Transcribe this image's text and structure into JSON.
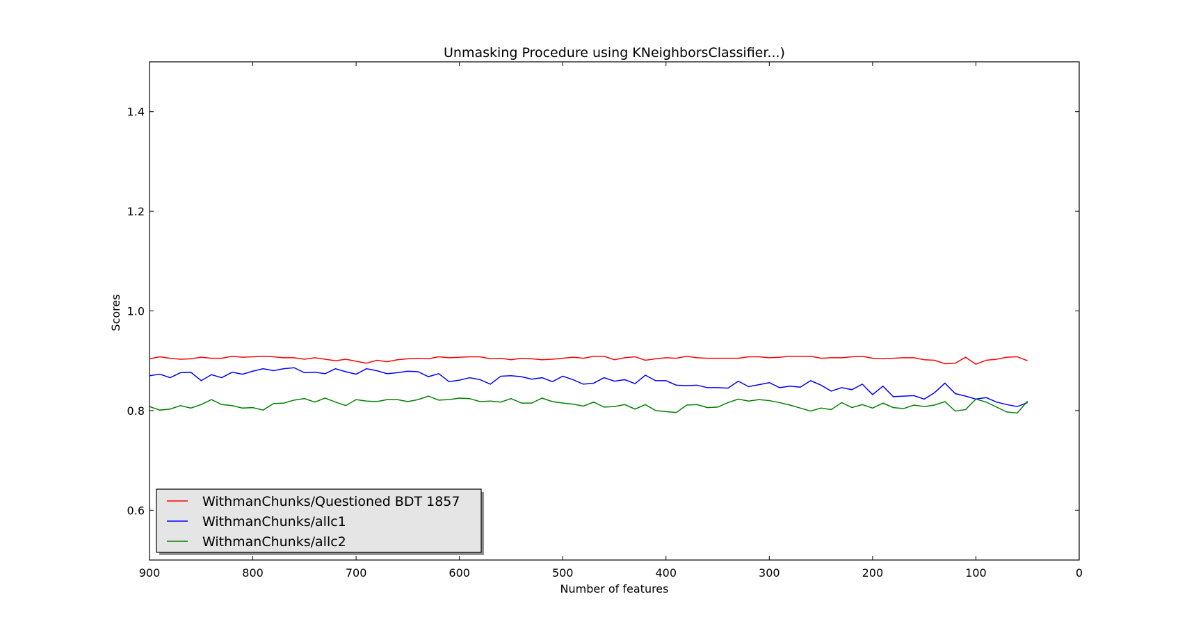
{
  "chart_data": {
    "type": "line",
    "title": "Unmasking Procedure using KNeighborsClassifier...)",
    "xlabel": "Number of features",
    "ylabel": "Scores",
    "xlim": [
      900,
      0
    ],
    "ylim": [
      0.5,
      1.5
    ],
    "x_ticks": [
      900,
      800,
      700,
      600,
      500,
      400,
      300,
      200,
      100,
      0
    ],
    "y_ticks": [
      0.6,
      0.8,
      1.0,
      1.2,
      1.4
    ],
    "y_tick_labels": [
      "0.6",
      "0.8",
      "1.0",
      "1.2",
      "1.4"
    ],
    "grid": false,
    "legend_position": "lower-left",
    "x": [
      900,
      890,
      880,
      870,
      860,
      850,
      840,
      830,
      820,
      810,
      800,
      790,
      780,
      770,
      760,
      750,
      740,
      730,
      720,
      710,
      700,
      690,
      680,
      670,
      660,
      650,
      640,
      630,
      620,
      610,
      600,
      590,
      580,
      570,
      560,
      550,
      540,
      530,
      520,
      510,
      500,
      490,
      480,
      470,
      460,
      450,
      440,
      430,
      420,
      410,
      400,
      390,
      380,
      370,
      360,
      350,
      340,
      330,
      320,
      310,
      300,
      290,
      280,
      270,
      260,
      250,
      240,
      230,
      220,
      210,
      200,
      190,
      180,
      170,
      160,
      150,
      140,
      130,
      120,
      110,
      100,
      90,
      80,
      70,
      60,
      50
    ],
    "series": [
      {
        "name": "WithmanChunks/Questioned BDT 1857",
        "color": "#ff0000",
        "values": [
          0.904,
          0.908,
          0.905,
          0.903,
          0.904,
          0.907,
          0.905,
          0.905,
          0.909,
          0.907,
          0.908,
          0.909,
          0.908,
          0.906,
          0.906,
          0.903,
          0.906,
          0.903,
          0.9,
          0.903,
          0.899,
          0.895,
          0.901,
          0.898,
          0.902,
          0.904,
          0.905,
          0.904,
          0.908,
          0.906,
          0.907,
          0.908,
          0.908,
          0.904,
          0.905,
          0.902,
          0.905,
          0.904,
          0.902,
          0.903,
          0.905,
          0.907,
          0.905,
          0.909,
          0.909,
          0.902,
          0.906,
          0.908,
          0.901,
          0.904,
          0.906,
          0.905,
          0.909,
          0.906,
          0.905,
          0.905,
          0.905,
          0.905,
          0.908,
          0.908,
          0.906,
          0.907,
          0.909,
          0.909,
          0.909,
          0.905,
          0.906,
          0.906,
          0.908,
          0.909,
          0.905,
          0.904,
          0.905,
          0.906,
          0.906,
          0.902,
          0.901,
          0.894,
          0.895,
          0.907,
          0.893,
          0.901,
          0.903,
          0.907,
          0.908,
          0.9
        ]
      },
      {
        "name": "WithmanChunks/allc1",
        "color": "#0000ff",
        "values": [
          0.87,
          0.873,
          0.866,
          0.876,
          0.877,
          0.86,
          0.872,
          0.866,
          0.877,
          0.873,
          0.879,
          0.884,
          0.88,
          0.884,
          0.886,
          0.876,
          0.877,
          0.874,
          0.884,
          0.878,
          0.873,
          0.884,
          0.88,
          0.874,
          0.876,
          0.879,
          0.878,
          0.868,
          0.874,
          0.858,
          0.861,
          0.866,
          0.862,
          0.853,
          0.869,
          0.87,
          0.868,
          0.863,
          0.866,
          0.858,
          0.869,
          0.862,
          0.853,
          0.855,
          0.866,
          0.859,
          0.862,
          0.854,
          0.871,
          0.86,
          0.86,
          0.851,
          0.85,
          0.851,
          0.846,
          0.846,
          0.845,
          0.859,
          0.848,
          0.852,
          0.856,
          0.846,
          0.849,
          0.847,
          0.86,
          0.851,
          0.839,
          0.846,
          0.842,
          0.853,
          0.832,
          0.849,
          0.828,
          0.829,
          0.83,
          0.823,
          0.836,
          0.855,
          0.834,
          0.829,
          0.823,
          0.826,
          0.817,
          0.812,
          0.808,
          0.816
        ]
      },
      {
        "name": "WithmanChunks/allc2",
        "color": "#008000",
        "values": [
          0.808,
          0.801,
          0.803,
          0.81,
          0.805,
          0.812,
          0.822,
          0.812,
          0.81,
          0.805,
          0.806,
          0.801,
          0.814,
          0.815,
          0.821,
          0.824,
          0.817,
          0.825,
          0.817,
          0.81,
          0.822,
          0.819,
          0.818,
          0.822,
          0.822,
          0.818,
          0.822,
          0.829,
          0.821,
          0.822,
          0.825,
          0.824,
          0.818,
          0.819,
          0.817,
          0.824,
          0.815,
          0.815,
          0.825,
          0.818,
          0.815,
          0.813,
          0.809,
          0.817,
          0.807,
          0.808,
          0.812,
          0.803,
          0.812,
          0.8,
          0.798,
          0.796,
          0.811,
          0.812,
          0.806,
          0.807,
          0.816,
          0.823,
          0.819,
          0.822,
          0.82,
          0.816,
          0.811,
          0.805,
          0.799,
          0.805,
          0.802,
          0.816,
          0.806,
          0.812,
          0.805,
          0.815,
          0.806,
          0.804,
          0.811,
          0.808,
          0.811,
          0.818,
          0.799,
          0.802,
          0.823,
          0.817,
          0.807,
          0.797,
          0.795,
          0.819
        ]
      }
    ]
  }
}
